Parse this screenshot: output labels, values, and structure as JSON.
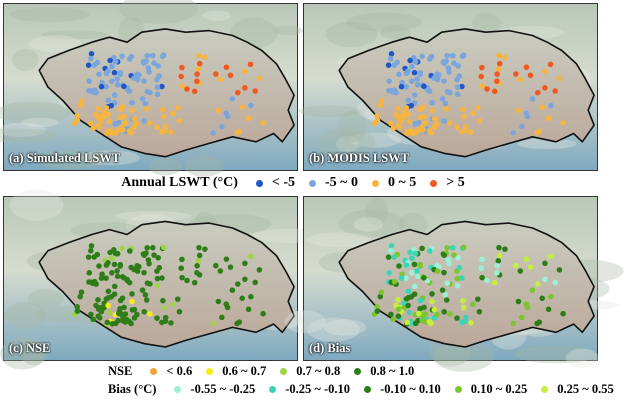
{
  "panels": {
    "a": "(a) Simulated LSWT",
    "b": "(b) MODIS LSWT",
    "c": "(c) NSE",
    "d": "(d) Bias"
  },
  "legend_lswt": {
    "title": "Annual LSWT (°C)",
    "items": [
      {
        "label": "< -5",
        "color": "#1f57c8"
      },
      {
        "label": "-5 ~ 0",
        "color": "#7aa6dc"
      },
      {
        "label": "0 ~ 5",
        "color": "#f6b440"
      },
      {
        "label": "> 5",
        "color": "#f05820"
      }
    ]
  },
  "legend_nse": {
    "title": "NSE",
    "items": [
      {
        "label": "< 0.6",
        "color": "#f2a23a"
      },
      {
        "label": "0.6 ~ 0.7",
        "color": "#f4ec1c"
      },
      {
        "label": "0.7 ~ 0.8",
        "color": "#9fd448"
      },
      {
        "label": "0.8 ~ 1.0",
        "color": "#2e7d18"
      }
    ]
  },
  "legend_bias": {
    "title": "Bias (°C)",
    "items": [
      {
        "label": "-0.55 ~ -0.25",
        "color": "#9cf0d8"
      },
      {
        "label": "-0.25 ~ -0.10",
        "color": "#37d6b6"
      },
      {
        "label": "-0.10 ~ 0.10",
        "color": "#2c7d16"
      },
      {
        "label": "0.10 ~ 0.25",
        "color": "#7cc52e"
      },
      {
        "label": "0.25 ~ 0.55",
        "color": "#c6ee3c"
      }
    ]
  }
}
